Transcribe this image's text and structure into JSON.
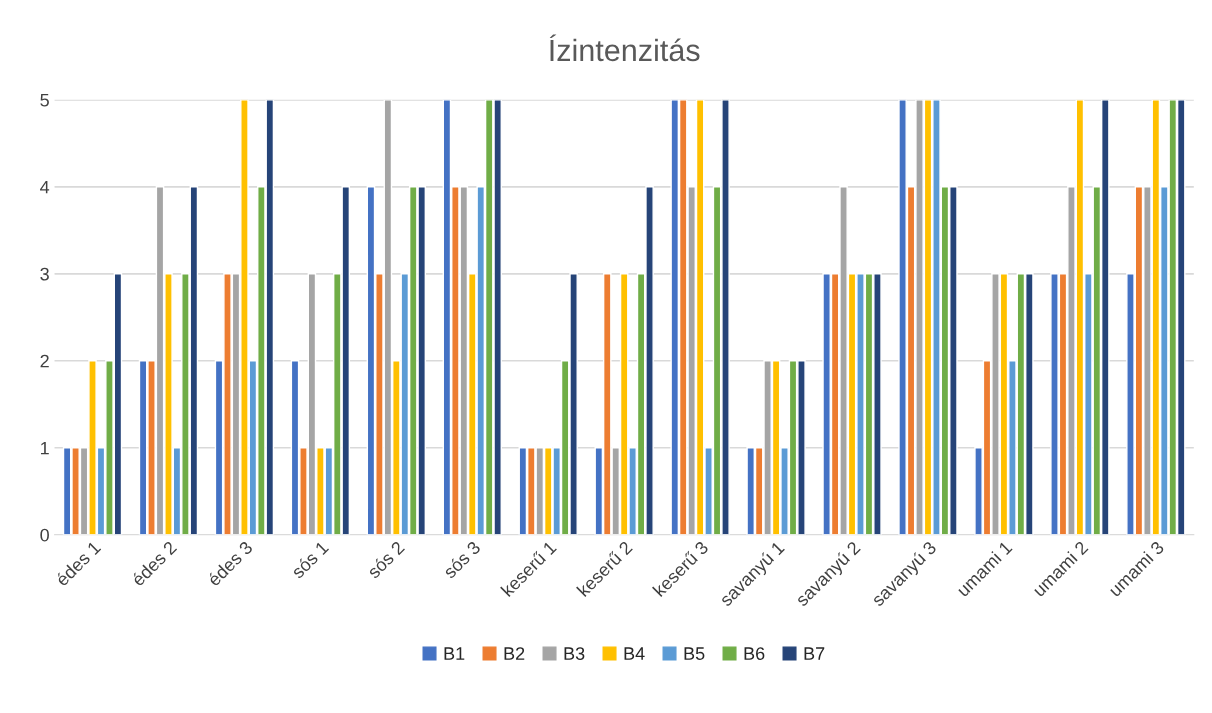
{
  "chart_data": {
    "type": "bar",
    "title": "Ízintenzitás",
    "categories": [
      "édes 1",
      "édes 2",
      "édes 3",
      "sós 1",
      "sós 2",
      "sós 3",
      "keserű 1",
      "keserű 2",
      "keserű 3",
      "savanyú 1",
      "savanyú 2",
      "savanyú 3",
      "umami 1",
      "umami 2",
      "umami 3"
    ],
    "series": [
      {
        "name": "B1",
        "color": "#4472c4",
        "values": [
          1,
          2,
          2,
          2,
          4,
          5,
          1,
          1,
          5,
          1,
          3,
          5,
          1,
          3,
          3
        ]
      },
      {
        "name": "B2",
        "color": "#ed7d31",
        "values": [
          1,
          2,
          3,
          1,
          3,
          4,
          1,
          3,
          5,
          1,
          3,
          4,
          2,
          3,
          4
        ]
      },
      {
        "name": "B3",
        "color": "#a5a5a5",
        "values": [
          1,
          4,
          3,
          3,
          5,
          4,
          1,
          1,
          4,
          2,
          4,
          5,
          3,
          4,
          4
        ]
      },
      {
        "name": "B4",
        "color": "#ffc000",
        "values": [
          2,
          3,
          5,
          1,
          2,
          3,
          1,
          3,
          5,
          2,
          3,
          5,
          3,
          5,
          5
        ]
      },
      {
        "name": "B5",
        "color": "#5b9bd5",
        "values": [
          1,
          1,
          2,
          1,
          3,
          4,
          1,
          1,
          1,
          1,
          3,
          5,
          2,
          3,
          4
        ]
      },
      {
        "name": "B6",
        "color": "#70ad47",
        "values": [
          2,
          3,
          4,
          3,
          4,
          5,
          2,
          3,
          4,
          2,
          3,
          4,
          3,
          4,
          5
        ]
      },
      {
        "name": "B7",
        "color": "#264478",
        "values": [
          3,
          4,
          5,
          4,
          4,
          5,
          3,
          4,
          5,
          2,
          3,
          4,
          3,
          5,
          5
        ]
      }
    ],
    "ylim": [
      0,
      5
    ],
    "yticks": [
      0,
      1,
      2,
      3,
      4,
      5
    ],
    "grid": "y",
    "legend": "bottom"
  }
}
